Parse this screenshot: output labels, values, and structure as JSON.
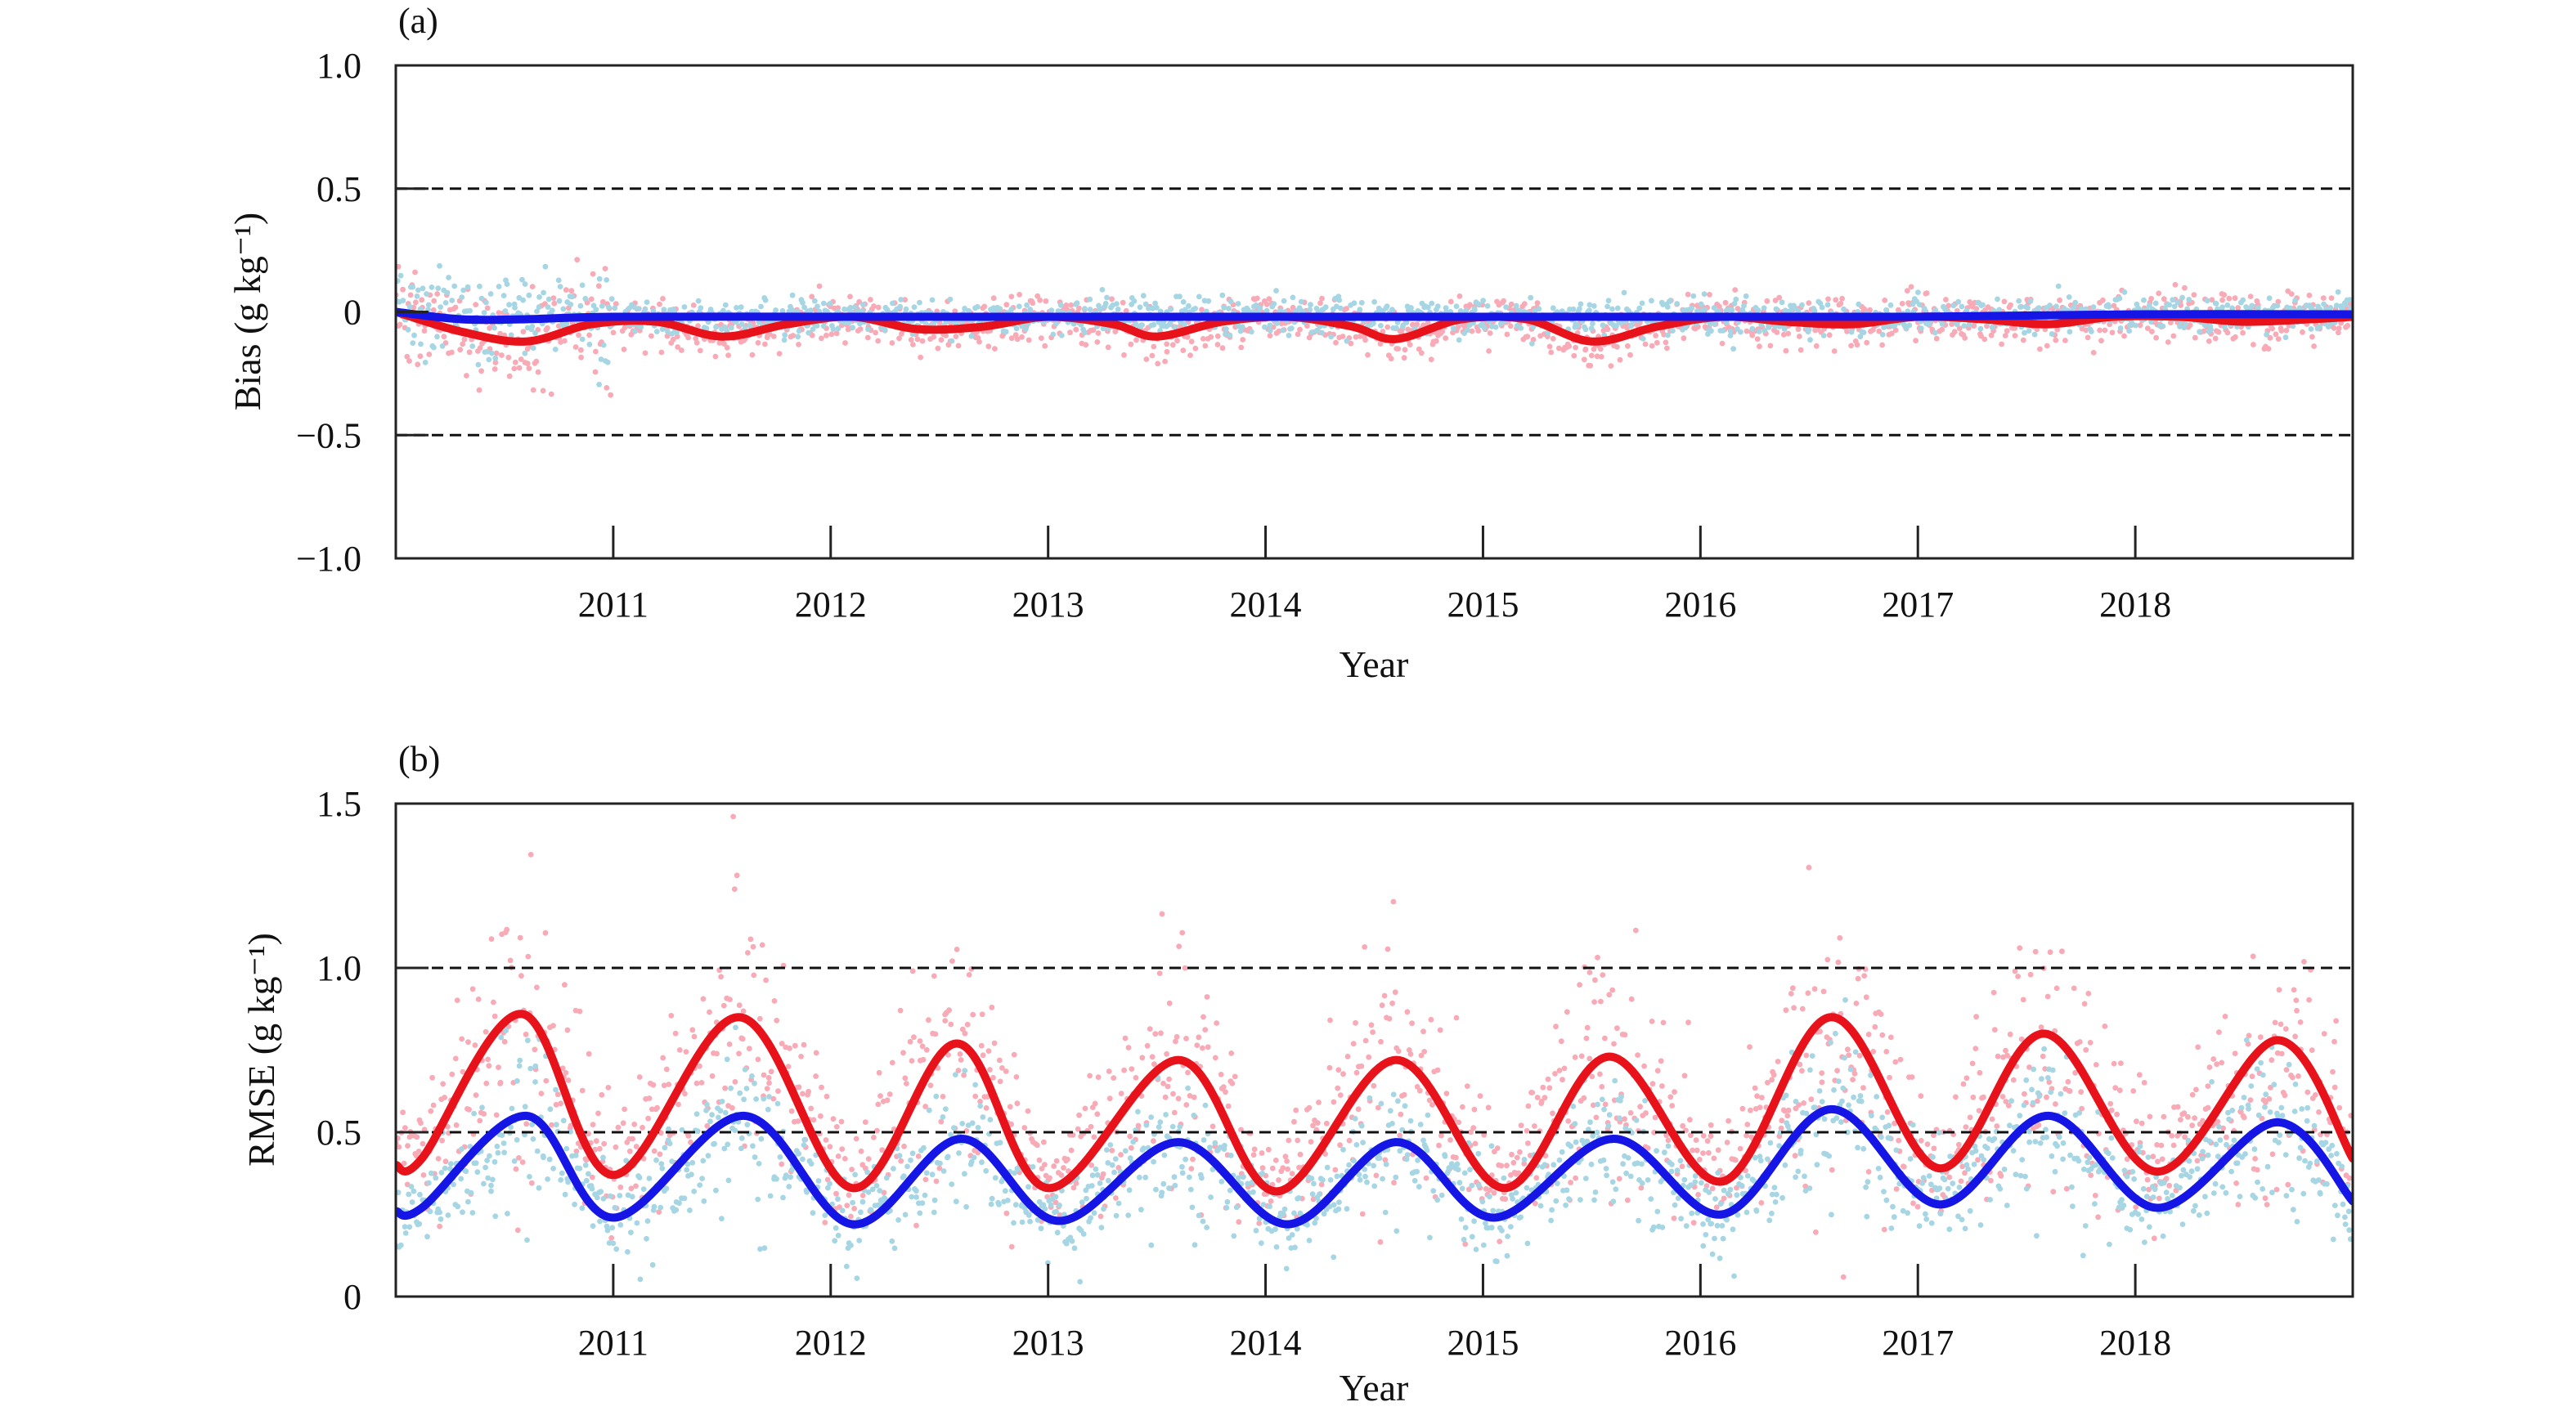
{
  "chart_data": [
    {
      "panel_label": "(a)",
      "type": "line",
      "xlabel": "Year",
      "ylabel": "Bias (g kg⁻¹)",
      "xlim": [
        2010.0,
        2019.0
      ],
      "ylim": [
        -1.0,
        1.0
      ],
      "x_ticks": [
        "2011",
        "2012",
        "2013",
        "2014",
        "2015",
        "2016",
        "2017",
        "2018"
      ],
      "y_ticks": [
        "1.0",
        "0.5",
        "0",
        "−0.5",
        "−1.0"
      ],
      "reference_lines": [
        0.5,
        -0.5
      ],
      "series": [
        {
          "color": "#e8121a",
          "x": [
            2010.0,
            2010.3,
            2010.6,
            2010.9,
            2011.2,
            2011.5,
            2011.8,
            2012.1,
            2012.4,
            2012.7,
            2013.0,
            2013.3,
            2013.5,
            2013.8,
            2014.1,
            2014.4,
            2014.6,
            2014.9,
            2015.2,
            2015.5,
            2015.8,
            2016.1,
            2016.4,
            2016.7,
            2017.0,
            2017.3,
            2017.6,
            2017.9,
            2018.2,
            2018.5,
            2018.8,
            2019.0
          ],
          "y": [
            0.0,
            -0.08,
            -0.12,
            -0.05,
            -0.04,
            -0.1,
            -0.05,
            -0.02,
            -0.07,
            -0.06,
            -0.02,
            -0.05,
            -0.1,
            -0.04,
            -0.02,
            -0.06,
            -0.11,
            -0.03,
            -0.03,
            -0.12,
            -0.06,
            -0.02,
            -0.04,
            -0.05,
            -0.02,
            -0.03,
            -0.05,
            -0.02,
            -0.02,
            -0.04,
            -0.03,
            -0.02
          ]
        },
        {
          "color": "#1515e6",
          "x": [
            2010.0,
            2010.3,
            2010.6,
            2011.0,
            2012.0,
            2013.0,
            2014.0,
            2015.0,
            2016.0,
            2017.0,
            2018.0,
            2019.0
          ],
          "y": [
            0.0,
            -0.03,
            -0.03,
            -0.02,
            -0.02,
            -0.02,
            -0.02,
            -0.02,
            -0.02,
            -0.02,
            -0.01,
            -0.01
          ]
        }
      ],
      "scatter_colors": [
        "#f8aab6",
        "#a6d6e4"
      ]
    },
    {
      "panel_label": "(b)",
      "type": "line",
      "xlabel": "Year",
      "ylabel": "RMSE (g kg⁻¹)",
      "xlim": [
        2010.0,
        2019.0
      ],
      "ylim": [
        0,
        1.5
      ],
      "x_ticks": [
        "2011",
        "2012",
        "2013",
        "2014",
        "2015",
        "2016",
        "2017",
        "2018"
      ],
      "y_ticks": [
        "1.5",
        "1.0",
        "0.5",
        "0"
      ],
      "reference_lines": [
        1.0,
        0.5
      ],
      "series": [
        {
          "color": "#e8121a",
          "x": [
            2010.0,
            2010.12,
            2010.58,
            2011.0,
            2011.58,
            2012.1,
            2012.58,
            2013.0,
            2013.6,
            2014.05,
            2014.6,
            2015.1,
            2015.58,
            2016.1,
            2016.6,
            2017.1,
            2017.58,
            2018.1,
            2018.65,
            2019.0
          ],
          "y": [
            0.4,
            0.42,
            0.86,
            0.37,
            0.85,
            0.33,
            0.77,
            0.33,
            0.72,
            0.32,
            0.72,
            0.33,
            0.73,
            0.35,
            0.85,
            0.39,
            0.8,
            0.38,
            0.78,
            0.42
          ]
        },
        {
          "color": "#1515e6",
          "x": [
            2010.0,
            2010.12,
            2010.6,
            2011.0,
            2011.6,
            2012.1,
            2012.6,
            2013.05,
            2013.6,
            2014.1,
            2014.6,
            2015.05,
            2015.6,
            2016.1,
            2016.6,
            2017.1,
            2017.6,
            2018.1,
            2018.65,
            2019.0
          ],
          "y": [
            0.26,
            0.27,
            0.55,
            0.24,
            0.55,
            0.22,
            0.48,
            0.23,
            0.47,
            0.22,
            0.47,
            0.24,
            0.48,
            0.25,
            0.57,
            0.28,
            0.55,
            0.27,
            0.53,
            0.29
          ]
        }
      ],
      "scatter_colors": [
        "#f8aab6",
        "#a6d6e4"
      ]
    }
  ]
}
